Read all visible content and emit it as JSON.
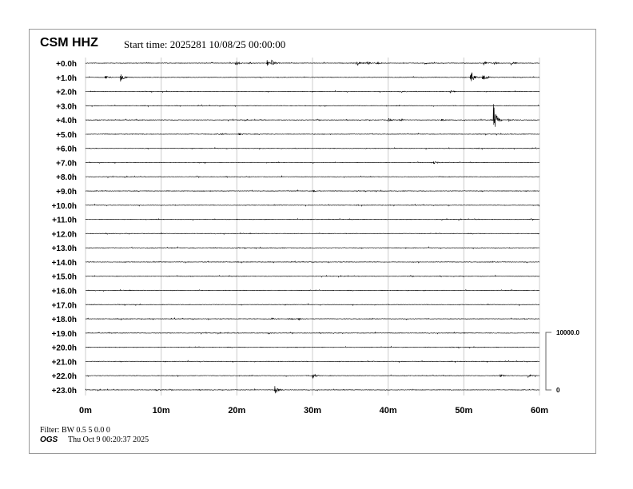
{
  "header": {
    "station": "CSM HHZ",
    "start_time": "Start time: 2025281 10/08/25 00:00:00"
  },
  "footer": {
    "filter": "Filter: BW 0.5 5 0.0 0",
    "agency": "OGS",
    "generated": "Thu Oct  9 00:20:37 2025"
  },
  "chart_data": {
    "type": "line",
    "title": "CSM HHZ",
    "row_labels": [
      "+0.0h",
      "+1.0h",
      "+2.0h",
      "+3.0h",
      "+4.0h",
      "+5.0h",
      "+6.0h",
      "+7.0h",
      "+8.0h",
      "+9.0h",
      "+10.0h",
      "+11.0h",
      "+12.0h",
      "+13.0h",
      "+14.0h",
      "+15.0h",
      "+16.0h",
      "+17.0h",
      "+18.0h",
      "+19.0h",
      "+20.0h",
      "+21.0h",
      "+22.0h",
      "+23.0h"
    ],
    "x_ticks": [
      "0m",
      "10m",
      "20m",
      "30m",
      "40m",
      "50m",
      "60m"
    ],
    "xlim": [
      0,
      60
    ],
    "grid": true,
    "scale_bar": {
      "top_label": "10000.0",
      "bottom_label": "0",
      "value": 10000
    },
    "trace_color": "#000000",
    "grid_color": "#cccccc",
    "events": [
      {
        "row": 0,
        "minute": 19.8,
        "amplitude": 500
      },
      {
        "row": 0,
        "minute": 21.5,
        "amplitude": 250
      },
      {
        "row": 0,
        "minute": 24.0,
        "amplitude": 600
      },
      {
        "row": 0,
        "minute": 24.6,
        "amplitude": 500
      },
      {
        "row": 0,
        "minute": 35.8,
        "amplitude": 700
      },
      {
        "row": 0,
        "minute": 37.2,
        "amplitude": 300
      },
      {
        "row": 0,
        "minute": 38.5,
        "amplitude": 200
      },
      {
        "row": 0,
        "minute": 44.8,
        "amplitude": 200
      },
      {
        "row": 0,
        "minute": 52.6,
        "amplitude": 500
      },
      {
        "row": 0,
        "minute": 54.0,
        "amplitude": 300
      },
      {
        "row": 0,
        "minute": 56.2,
        "amplitude": 400
      },
      {
        "row": 1,
        "minute": 2.6,
        "amplitude": 300
      },
      {
        "row": 1,
        "minute": 4.6,
        "amplitude": 900
      },
      {
        "row": 1,
        "minute": 50.9,
        "amplitude": 1300
      },
      {
        "row": 1,
        "minute": 52.5,
        "amplitude": 1000
      },
      {
        "row": 2,
        "minute": 41.5,
        "amplitude": 150
      },
      {
        "row": 2,
        "minute": 48.2,
        "amplitude": 200
      },
      {
        "row": 4,
        "minute": 40.0,
        "amplitude": 300
      },
      {
        "row": 4,
        "minute": 41.5,
        "amplitude": 250
      },
      {
        "row": 4,
        "minute": 47.0,
        "amplitude": 200
      },
      {
        "row": 4,
        "minute": 53.9,
        "amplitude": 3000
      },
      {
        "row": 4,
        "minute": 55.8,
        "amplitude": 300
      },
      {
        "row": 5,
        "minute": 17.7,
        "amplitude": 150
      },
      {
        "row": 5,
        "minute": 20.2,
        "amplitude": 200
      },
      {
        "row": 7,
        "minute": 46.0,
        "amplitude": 300
      },
      {
        "row": 9,
        "minute": 30.1,
        "amplitude": 200
      },
      {
        "row": 18,
        "minute": 24.5,
        "amplitude": 200
      },
      {
        "row": 18,
        "minute": 26.8,
        "amplitude": 200
      },
      {
        "row": 18,
        "minute": 28.2,
        "amplitude": 200
      },
      {
        "row": 19,
        "minute": 24.2,
        "amplitude": 150
      },
      {
        "row": 22,
        "minute": 30.0,
        "amplitude": 500
      },
      {
        "row": 22,
        "minute": 54.8,
        "amplitude": 250
      },
      {
        "row": 22,
        "minute": 58.5,
        "amplitude": 250
      },
      {
        "row": 23,
        "minute": 9.3,
        "amplitude": 200
      },
      {
        "row": 23,
        "minute": 25.0,
        "amplitude": 900
      }
    ]
  }
}
